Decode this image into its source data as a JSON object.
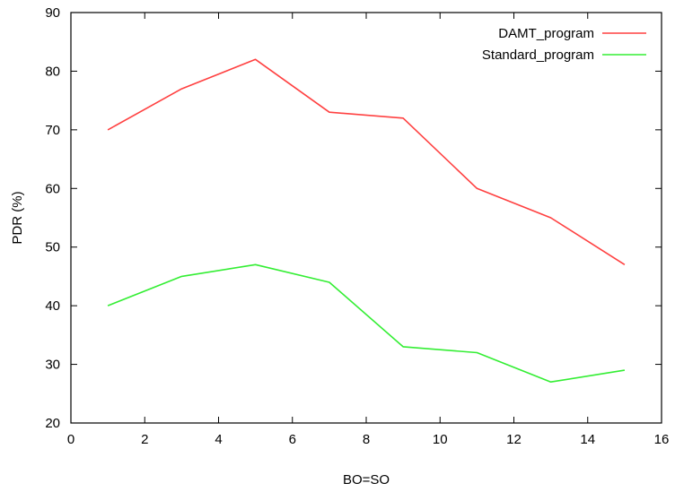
{
  "chart_data": {
    "type": "line",
    "title": "",
    "xlabel": "BO=SO",
    "ylabel": "PDR (%)",
    "xlim": [
      0,
      16
    ],
    "ylim": [
      20,
      90
    ],
    "xticks": [
      0,
      2,
      4,
      6,
      8,
      10,
      12,
      14,
      16
    ],
    "yticks": [
      20,
      30,
      40,
      50,
      60,
      70,
      80,
      90
    ],
    "grid": false,
    "legend_position": "top-right",
    "x": [
      1,
      3,
      5,
      7,
      9,
      11,
      13,
      15
    ],
    "series": [
      {
        "name": "DAMT_program",
        "color": "#ff4040",
        "values": [
          70,
          77,
          82,
          73,
          72,
          60,
          55,
          47
        ]
      },
      {
        "name": "Standard_program",
        "color": "#33ee33",
        "values": [
          40,
          45,
          47,
          44,
          33,
          32,
          27,
          29
        ]
      }
    ]
  }
}
